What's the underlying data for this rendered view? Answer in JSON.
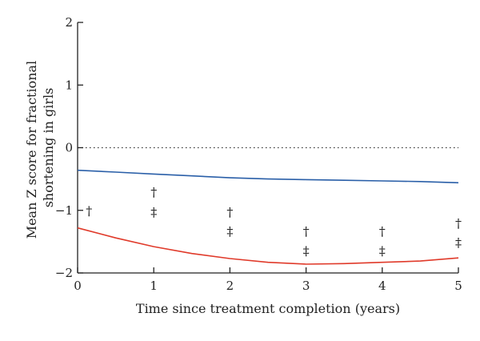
{
  "chart_data": {
    "type": "line",
    "xlabel": "Time since treatment completion (years)",
    "ylabel": "Mean Z score for fractional shortening in girls",
    "ylabel_lines": [
      "Mean Z score for fractional",
      "shortening in girls"
    ],
    "xlim": [
      0,
      5
    ],
    "ylim": [
      -2,
      2
    ],
    "x_ticks": [
      0,
      1,
      2,
      3,
      4,
      5
    ],
    "y_ticks": [
      -2,
      -1,
      0,
      1,
      2
    ],
    "x_tick_labels": [
      "0",
      "1",
      "2",
      "3",
      "4",
      "5"
    ],
    "y_tick_labels": [
      "−2",
      "−1",
      "0",
      "1",
      "2"
    ],
    "grid": false,
    "reference_line": {
      "y": 0,
      "style": "dotted"
    },
    "series": [
      {
        "color": "#2a5fa8",
        "x": [
          0,
          0.5,
          1,
          1.5,
          2,
          2.5,
          3,
          3.5,
          4,
          4.5,
          5
        ],
        "y": [
          -0.36,
          -0.39,
          -0.42,
          -0.45,
          -0.48,
          -0.5,
          -0.51,
          -0.52,
          -0.53,
          -0.54,
          -0.56
        ]
      },
      {
        "color": "#e03a2a",
        "x": [
          0,
          0.5,
          1,
          1.5,
          2,
          2.5,
          3,
          3.5,
          4,
          4.5,
          5
        ],
        "y": [
          -1.28,
          -1.44,
          -1.58,
          -1.69,
          -1.77,
          -1.83,
          -1.86,
          -1.85,
          -1.83,
          -1.81,
          -1.76
        ]
      }
    ],
    "annotations": [
      {
        "x": 0.15,
        "y": -1.0,
        "text": "†"
      },
      {
        "x": 1.0,
        "y": -0.7,
        "text": "†"
      },
      {
        "x": 1.0,
        "y": -1.02,
        "text": "‡"
      },
      {
        "x": 2.0,
        "y": -1.02,
        "text": "†"
      },
      {
        "x": 2.0,
        "y": -1.33,
        "text": "‡"
      },
      {
        "x": 3.0,
        "y": -1.33,
        "text": "†"
      },
      {
        "x": 3.0,
        "y": -1.64,
        "text": "‡"
      },
      {
        "x": 4.0,
        "y": -1.33,
        "text": "†"
      },
      {
        "x": 4.0,
        "y": -1.64,
        "text": "‡"
      },
      {
        "x": 5.0,
        "y": -1.2,
        "text": "†"
      },
      {
        "x": 5.0,
        "y": -1.51,
        "text": "‡"
      }
    ]
  }
}
